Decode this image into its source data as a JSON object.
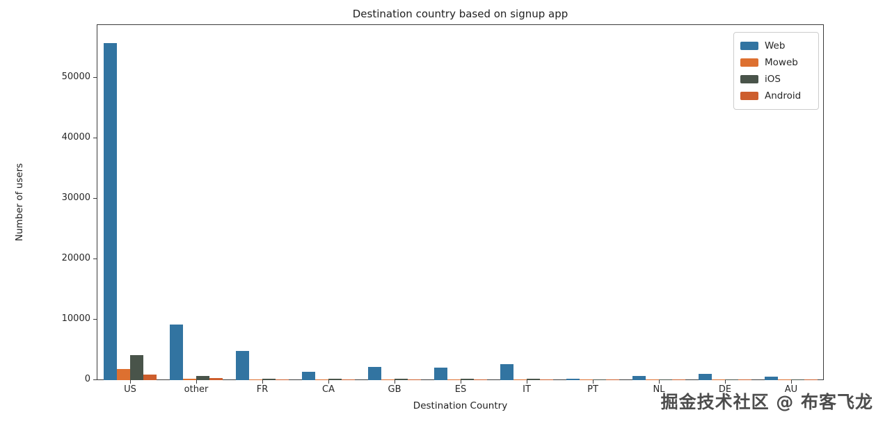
{
  "title": "Destination country based on signup app",
  "axes": {
    "y_label": "Number of users",
    "x_label": "Destination Country"
  },
  "watermark": "掘金技术社区 @ 布客飞龙",
  "colors": {
    "web": "#3274a1",
    "moweb": "#dd7030",
    "ios": "#49544a",
    "android": "#cd5e2d",
    "axis": "#3a3a3a",
    "text": "#262626"
  },
  "chart_data": {
    "type": "bar",
    "title": "Destination country based on signup app",
    "xlabel": "Destination Country",
    "ylabel": "Number of users",
    "categories": [
      "US",
      "other",
      "FR",
      "CA",
      "GB",
      "ES",
      "IT",
      "PT",
      "NL",
      "DE",
      "AU"
    ],
    "series": [
      {
        "name": "Web",
        "color": "#3274a1",
        "values": [
          55800,
          9200,
          4800,
          1400,
          2200,
          2100,
          2650,
          250,
          700,
          1050,
          550
        ]
      },
      {
        "name": "Moweb",
        "color": "#dd7030",
        "values": [
          1800,
          250,
          150,
          60,
          70,
          70,
          60,
          30,
          30,
          40,
          30
        ]
      },
      {
        "name": "iOS",
        "color": "#49544a",
        "values": [
          4100,
          750,
          250,
          200,
          250,
          220,
          200,
          60,
          90,
          110,
          90
        ]
      },
      {
        "name": "Android",
        "color": "#cd5e2d",
        "values": [
          950,
          300,
          120,
          70,
          80,
          80,
          60,
          30,
          30,
          40,
          30
        ]
      }
    ],
    "ylim": [
      0,
      58850
    ],
    "yticks": [
      0,
      10000,
      20000,
      30000,
      40000,
      50000
    ],
    "grid": false,
    "legend_position": "upper right"
  }
}
